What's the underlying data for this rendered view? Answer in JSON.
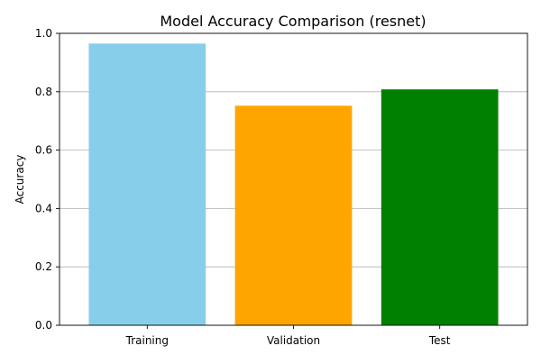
{
  "chart_data": {
    "type": "bar",
    "title": "Model Accuracy Comparison (resnet)",
    "xlabel": "",
    "ylabel": "Accuracy",
    "categories": [
      "Training",
      "Validation",
      "Test"
    ],
    "values": [
      0.965,
      0.752,
      0.808
    ],
    "colors": [
      "#87ceeb",
      "#ffa500",
      "#008000"
    ],
    "ylim": [
      0,
      1.0
    ],
    "yticks": [
      "0.0",
      "0.2",
      "0.4",
      "0.6",
      "0.8",
      "1.0"
    ],
    "ytick_values": [
      0,
      0.2,
      0.4,
      0.6,
      0.8,
      1.0
    ],
    "grid": "y-axis"
  }
}
